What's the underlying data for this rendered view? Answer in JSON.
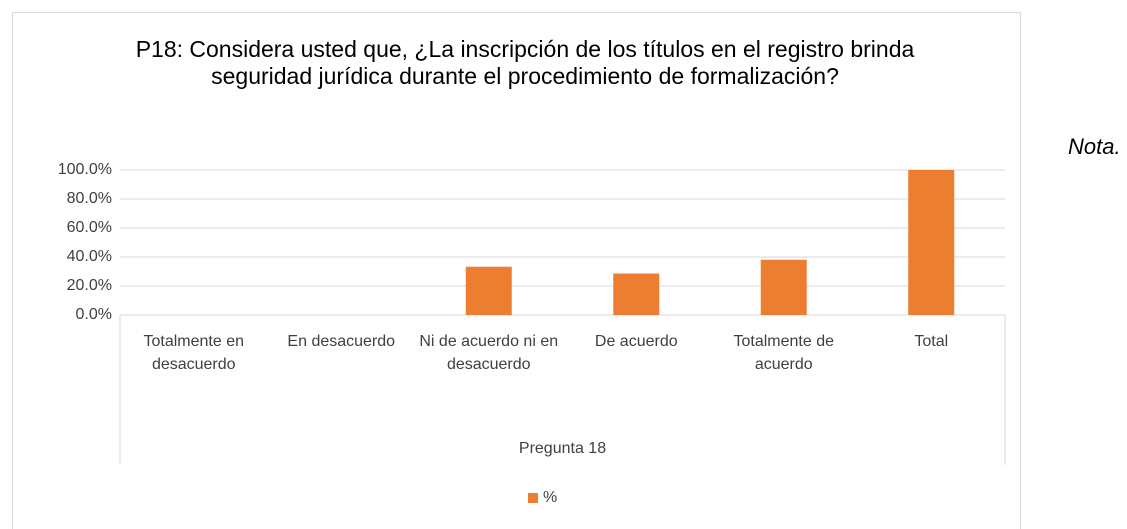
{
  "chart_data": {
    "type": "bar",
    "title": "P18: Considera usted que, ¿La inscripción de los títulos en el registro brinda seguridad jurídica durante el procedimiento de formalización?",
    "categories": [
      "Totalmente en desacuerdo",
      "En desacuerdo",
      "Ni de acuerdo ni en desacuerdo",
      "De acuerdo",
      "Totalmente de acuerdo",
      "Total"
    ],
    "series": [
      {
        "name": "%",
        "color": "#ed7d31",
        "values": [
          0,
          0,
          33.3,
          28.6,
          38.1,
          100
        ]
      }
    ],
    "xlabel": "Pregunta 18",
    "ylim": [
      0,
      100
    ],
    "yticks": [
      {
        "value": 0,
        "label": "0.0%"
      },
      {
        "value": 20,
        "label": "20.0%"
      },
      {
        "value": 40,
        "label": "40.0%"
      },
      {
        "value": 60,
        "label": "60.0%"
      },
      {
        "value": 80,
        "label": "80.0%"
      },
      {
        "value": 100,
        "label": "100.0%"
      }
    ],
    "grid": true,
    "legend": "bottom"
  },
  "note": "Nota."
}
